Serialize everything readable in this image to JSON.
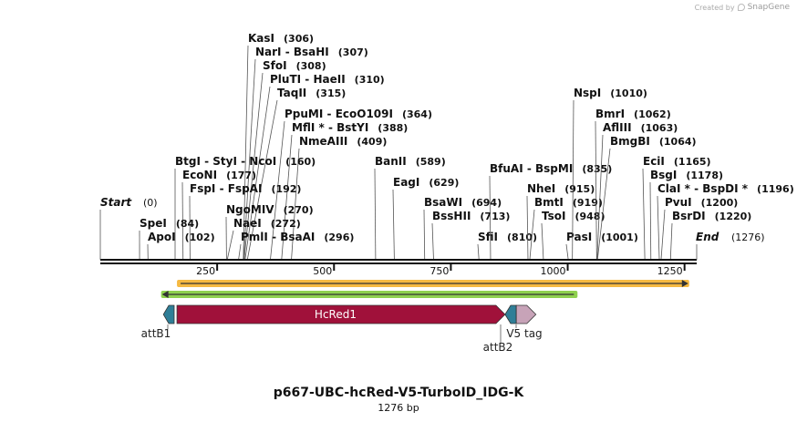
{
  "credit": {
    "prefix": "Created by",
    "brand": "SnapGene"
  },
  "title": "p667-UBC-hcRed-V5-TurboID_IDG-K",
  "subtitle": "1276 bp",
  "sequence": {
    "length": 1276,
    "start_label": "Start",
    "start_pos": "(0)",
    "end_label": "End",
    "end_pos": "(1276)"
  },
  "ruler_ticks": [
    250,
    500,
    750,
    1000,
    1250
  ],
  "ruler_tick_labels": [
    "250",
    "500",
    "750",
    "1000",
    "1250"
  ],
  "sites": [
    {
      "name": "KasI",
      "pos": 306,
      "pos_label": "(306)"
    },
    {
      "name": "NarI",
      "extra": "BsaHI",
      "pos": 307,
      "pos_label": "(307)"
    },
    {
      "name": "SfoI",
      "pos": 308,
      "pos_label": "(308)"
    },
    {
      "name": "PluTI",
      "extra": "HaeII",
      "pos": 310,
      "pos_label": "(310)"
    },
    {
      "name": "TaqII",
      "pos": 315,
      "pos_label": "(315)"
    },
    {
      "name": "PpuMI",
      "extra": "EcoO109I",
      "pos": 364,
      "pos_label": "(364)"
    },
    {
      "name": "MflI *",
      "extra": "BstYI",
      "pos": 388,
      "pos_label": "(388)"
    },
    {
      "name": "NmeAIII",
      "pos": 409,
      "pos_label": "(409)"
    },
    {
      "name": "BtgI",
      "extra": "StyI",
      "extra2": "NcoI",
      "pos": 160,
      "pos_label": "(160)"
    },
    {
      "name": "EcoNI",
      "pos": 177,
      "pos_label": "(177)"
    },
    {
      "name": "FspI",
      "extra": "FspAI",
      "pos": 192,
      "pos_label": "(192)"
    },
    {
      "name": "NgoMIV",
      "pos": 270,
      "pos_label": "(270)"
    },
    {
      "name": "NaeI",
      "pos": 272,
      "pos_label": "(272)"
    },
    {
      "name": "PmlI",
      "extra": "BsaAI",
      "pos": 296,
      "pos_label": "(296)"
    },
    {
      "name": "SpeI",
      "pos": 84,
      "pos_label": "(84)"
    },
    {
      "name": "ApoI",
      "pos": 102,
      "pos_label": "(102)"
    },
    {
      "name": "BanII",
      "pos": 589,
      "pos_label": "(589)"
    },
    {
      "name": "EagI",
      "pos": 629,
      "pos_label": "(629)"
    },
    {
      "name": "BsaWI",
      "pos": 694,
      "pos_label": "(694)"
    },
    {
      "name": "BssHII",
      "pos": 713,
      "pos_label": "(713)"
    },
    {
      "name": "SfiI",
      "pos": 810,
      "pos_label": "(810)"
    },
    {
      "name": "BfuAI",
      "extra": "BspMI",
      "pos": 835,
      "pos_label": "(835)"
    },
    {
      "name": "NheI",
      "pos": 915,
      "pos_label": "(915)"
    },
    {
      "name": "BmtI",
      "pos": 919,
      "pos_label": "(919)"
    },
    {
      "name": "TsoI",
      "pos": 948,
      "pos_label": "(948)"
    },
    {
      "name": "PasI",
      "pos": 1001,
      "pos_label": "(1001)"
    },
    {
      "name": "NspI",
      "pos": 1010,
      "pos_label": "(1010)"
    },
    {
      "name": "BmrI",
      "pos": 1062,
      "pos_label": "(1062)"
    },
    {
      "name": "AflIII",
      "pos": 1063,
      "pos_label": "(1063)"
    },
    {
      "name": "BmgBI",
      "pos": 1064,
      "pos_label": "(1064)"
    },
    {
      "name": "EciI",
      "pos": 1165,
      "pos_label": "(1165)"
    },
    {
      "name": "BsgI",
      "pos": 1178,
      "pos_label": "(1178)"
    },
    {
      "name": "ClaI *",
      "extra": "BspDI *",
      "pos": 1196,
      "pos_label": "(1196)"
    },
    {
      "name": "PvuI",
      "pos": 1200,
      "pos_label": "(1200)"
    },
    {
      "name": "BsrDI",
      "pos": 1220,
      "pos_label": "(1220)"
    }
  ],
  "features": [
    {
      "name": "attB1",
      "start": 135,
      "end": 158,
      "direction": "reverse",
      "color": "#2f7e97",
      "kind": "site"
    },
    {
      "name": "HcRed1",
      "start": 164,
      "end": 866,
      "direction": "forward",
      "color": "#a0113a",
      "kind": "cds"
    },
    {
      "name": "attB2",
      "start": 866,
      "end": 890,
      "direction": "reverse",
      "color": "#2f7e97",
      "kind": "site"
    },
    {
      "name": "V5 tag",
      "start": 890,
      "end": 932,
      "direction": "forward",
      "color": "#c7a3b8",
      "kind": "tag"
    }
  ],
  "orf_bars": [
    {
      "start": 164,
      "end": 1260,
      "direction": "forward",
      "color": "#f5b942"
    },
    {
      "start": 130,
      "end": 1021,
      "direction": "reverse",
      "color": "#8fd14f"
    }
  ]
}
